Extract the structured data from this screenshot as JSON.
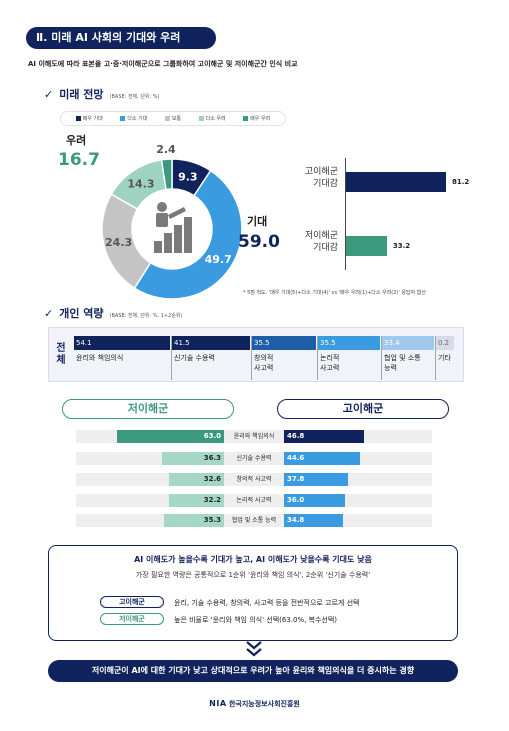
{
  "header": {
    "section_title": "Ⅱ. 미래 AI 사회의 기대와 우려",
    "subtitle": "AI 이해도에 따라 표본을 고·중·저이해군으로 그룹화하여 고이해군 및 저이해군간 인식 비교"
  },
  "future": {
    "check": "✓",
    "title": "미래 전망",
    "base": "(BASE: 전체, 단위: %)",
    "worry_label": "우려",
    "worry_value": "16.7",
    "expect_label": "기대",
    "expect_value": "59.0",
    "footnote": "* 5점 척도, '매우 기대(5)+다소 기대(4)' vs '매우 우려(1)+다소 우려(2)' 응답자 합산",
    "icon": "person-climbing-bar-chart-icon"
  },
  "capacity": {
    "check": "✓",
    "title": "개인 역량",
    "base": "(BASE: 전체, 단위: %, 1+2순위)",
    "overall_label": "전체",
    "low_group": "저이해군",
    "high_group": "고이해군"
  },
  "summary": {
    "title": "AI 이해도가 높을수록 기대가 높고, AI 이해도가 낮을수록 기대도 낮음",
    "subtitle": "가장 필요한 역량은 공통적으로 1순위 '윤리와 책임 의식', 2순위 '신기술 수용력'",
    "high_tag": "고이해군",
    "high_text": "윤리, 기술 수용력, 창의력, 사고력 등을 전반적으로 고르게 선택",
    "low_tag": "저이해군",
    "low_text": "높은 비율로 '윤리와 책임 의식' 선택(63.0%, 복수선택)",
    "conclusion": "저이해군이 AI에 대한 기대가 낮고 상대적으로 우려가 높아 윤리와 책임의식을 더 중시하는 경향"
  },
  "footer": {
    "logo": "NIA",
    "org": "한국지능정보사회진흥원"
  },
  "colors": {
    "navy": "#10235c",
    "blue": "#3a9be0",
    "gray": "#c4c4c4",
    "mint": "#9fd3c1",
    "green": "#3b9a7e"
  },
  "chart_data": [
    {
      "type": "pie",
      "title": "미래 전망",
      "categories": [
        "매우 기대",
        "다소 기대",
        "보통",
        "다소 우려",
        "매우 우려"
      ],
      "values": [
        9.3,
        49.7,
        24.3,
        14.3,
        2.4
      ],
      "colors": [
        "#10235c",
        "#3a9be0",
        "#c4c4c4",
        "#9fd3c1",
        "#3b9a7e"
      ],
      "legend": "top"
    },
    {
      "type": "bar",
      "categories": [
        "고이해군 기대감",
        "저이해군 기대감"
      ],
      "values": [
        81.2,
        33.2
      ],
      "colors": [
        "#10235c",
        "#3b9a7e"
      ]
    },
    {
      "type": "bar",
      "title": "개인 역량",
      "subtitle": "전체",
      "categories": [
        "윤리와 책임의식",
        "신기술 수용력",
        "창의적 사고력",
        "논리적 사고력",
        "협업 및 소통 능력",
        "기타"
      ],
      "values": [
        54.1,
        41.5,
        35.5,
        35.5,
        33.4,
        0.2
      ]
    },
    {
      "type": "bar",
      "categories": [
        "윤리와 책임의식",
        "신기술 수용력",
        "창의적 사고력",
        "논리적 사고력",
        "협업 및 소통 능력"
      ],
      "series": [
        {
          "name": "저이해군",
          "values": [
            63.0,
            36.3,
            32.6,
            32.2,
            35.3
          ]
        },
        {
          "name": "고이해군",
          "values": [
            46.8,
            44.6,
            37.8,
            36.0,
            34.8
          ]
        }
      ]
    }
  ]
}
